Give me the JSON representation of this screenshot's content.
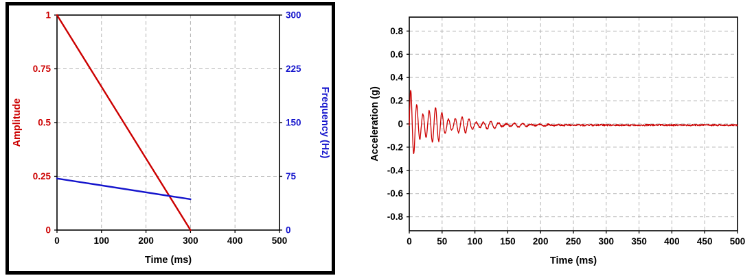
{
  "figure": {
    "background": "#ffffff",
    "left_panel_border_color": "#000000",
    "grid_color": "#b3b3b3",
    "red": "#cc0000",
    "blue": "#1414cc"
  },
  "chart_data": [
    {
      "type": "line",
      "name": "sweep-profile-chart",
      "xlabel": "Time (ms)",
      "xlim": [
        0,
        500
      ],
      "x_ticks": [
        0,
        100,
        200,
        300,
        400,
        500
      ],
      "grid": true,
      "legend": "none",
      "axes": [
        {
          "side": "left",
          "label": "Amplitude",
          "color": "#cc0000",
          "lim": [
            0,
            1
          ],
          "ticks": [
            0,
            0.25,
            0.5,
            0.75,
            1
          ]
        },
        {
          "side": "right",
          "label": "Frequency (Hz)",
          "color": "#1414cc",
          "lim": [
            0,
            300
          ],
          "ticks": [
            0,
            75,
            150,
            225,
            300
          ]
        }
      ],
      "series": [
        {
          "name": "amplitude-ramp",
          "axis": "left",
          "color": "#cc0000",
          "width": 2.4,
          "x": [
            0,
            300
          ],
          "y": [
            1,
            0
          ]
        },
        {
          "name": "frequency-sweep",
          "axis": "right",
          "color": "#1414cc",
          "width": 2.4,
          "x": [
            0,
            300
          ],
          "y": [
            72,
            43
          ]
        }
      ]
    },
    {
      "type": "line",
      "name": "acceleration-response-chart",
      "xlabel": "Time (ms)",
      "ylabel": "Acceleration (g)",
      "xlim": [
        0,
        500
      ],
      "ylim": [
        -0.92,
        0.92
      ],
      "x_ticks": [
        0,
        50,
        100,
        150,
        200,
        250,
        300,
        350,
        400,
        450,
        500
      ],
      "y_ticks": [
        -0.8,
        -0.6,
        -0.4,
        -0.2,
        0,
        0.2,
        0.4,
        0.6,
        0.8
      ],
      "grid": true,
      "legend": "none",
      "series": [
        {
          "name": "acceleration-signal",
          "color": "#cc0000",
          "width": 1.3,
          "model": "decaying-chirp",
          "peak_g": 0.32,
          "decay_tau_ms": 55,
          "freq_start_hz": 110,
          "freq_end_hz": 55,
          "sweep_end_ms": 300,
          "t_end_ms": 500,
          "beat_period_ms": 42,
          "noise_g": 0.007,
          "offset_g": -0.01,
          "samples_per_ms": 2
        }
      ]
    }
  ]
}
